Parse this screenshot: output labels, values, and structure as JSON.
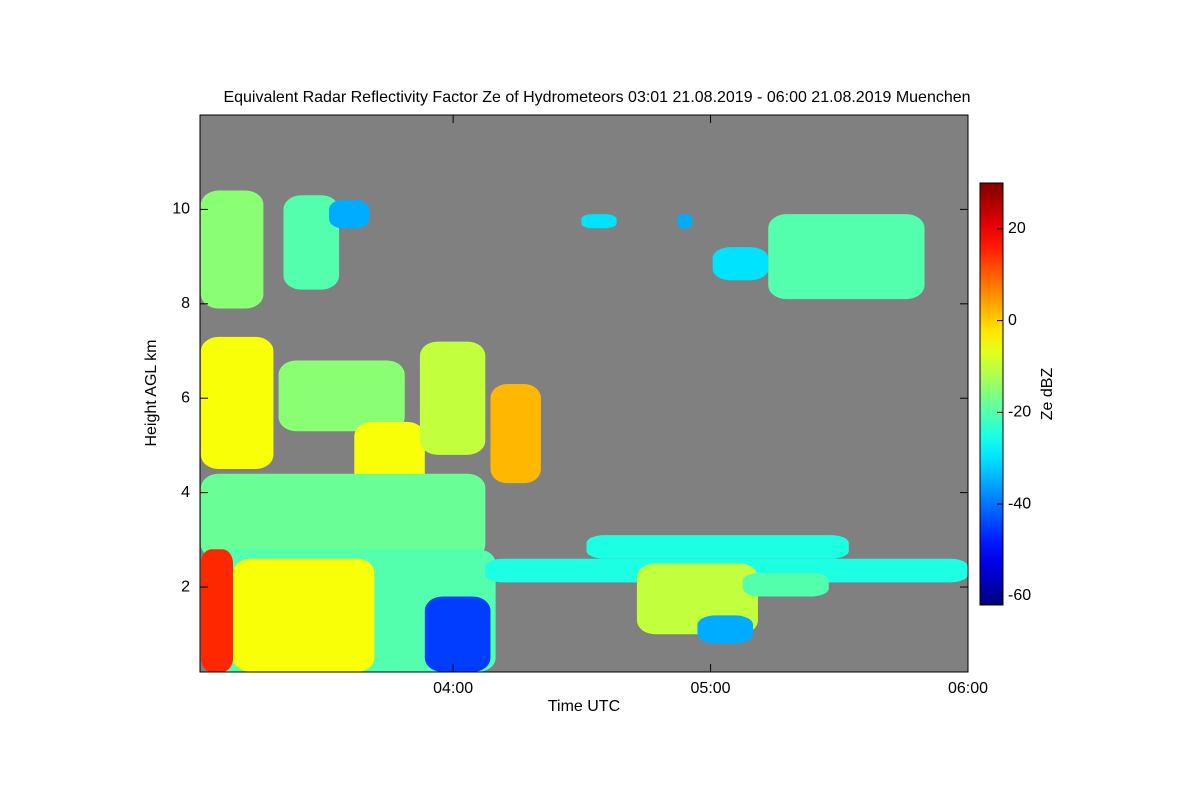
{
  "chart_data": {
    "type": "time-height",
    "title": "Equivalent Radar Reflectivity Factor Ze of Hydrometeors   03:01 21.08.2019 - 06:00 21.08.2019 Muenchen",
    "xlabel": "Time UTC",
    "ylabel": "Height AGL km",
    "colorbar_label": "Ze dBZ",
    "colormap": "jet",
    "background": "#808080",
    "xlim": [
      3.0167,
      6
    ],
    "xticks": [
      {
        "value": 4,
        "label": "04:00"
      },
      {
        "value": 5,
        "label": "05:00"
      },
      {
        "value": 6,
        "label": "06:00"
      }
    ],
    "ylim": [
      0.2,
      12
    ],
    "yticks": [
      2,
      4,
      6,
      8,
      10
    ],
    "clim": [
      -62,
      30
    ],
    "cticks": [
      20,
      0,
      -20,
      -40,
      -60
    ],
    "regions": [
      {
        "x0": 3.02,
        "x1": 3.263,
        "y0": 7.9,
        "y1": 10.4,
        "value": -15
      },
      {
        "x0": 3.341,
        "x1": 3.557,
        "y0": 8.3,
        "y1": 10.3,
        "value": -20
      },
      {
        "x0": 3.518,
        "x1": 3.675,
        "y0": 9.6,
        "y1": 10.2,
        "value": -35
      },
      {
        "x0": 3.02,
        "x1": 3.302,
        "y0": 4.5,
        "y1": 7.3,
        "value": -5
      },
      {
        "x0": 3.322,
        "x1": 3.812,
        "y0": 5.3,
        "y1": 6.8,
        "value": -15
      },
      {
        "x0": 3.616,
        "x1": 3.89,
        "y0": 4.0,
        "y1": 5.5,
        "value": -5
      },
      {
        "x0": 3.871,
        "x1": 4.125,
        "y0": 4.8,
        "y1": 7.2,
        "value": -10
      },
      {
        "x0": 4.145,
        "x1": 4.341,
        "y0": 4.2,
        "y1": 6.3,
        "value": 2
      },
      {
        "x0": 3.02,
        "x1": 4.125,
        "y0": 2.6,
        "y1": 4.4,
        "value": -18
      },
      {
        "x0": 3.02,
        "x1": 4.165,
        "y0": 0.2,
        "y1": 2.8,
        "value": -20
      },
      {
        "x0": 3.145,
        "x1": 3.694,
        "y0": 0.2,
        "y1": 2.6,
        "value": -5
      },
      {
        "x0": 3.02,
        "x1": 3.145,
        "y0": 0.2,
        "y1": 2.8,
        "value": 15
      },
      {
        "x0": 3.89,
        "x1": 4.145,
        "y0": 0.2,
        "y1": 1.8,
        "value": -45
      },
      {
        "x0": 4.125,
        "x1": 6.0,
        "y0": 2.1,
        "y1": 2.6,
        "value": -25
      },
      {
        "x0": 4.518,
        "x1": 5.537,
        "y0": 2.6,
        "y1": 3.1,
        "value": -25
      },
      {
        "x0": 4.714,
        "x1": 5.184,
        "y0": 1.0,
        "y1": 2.5,
        "value": -10
      },
      {
        "x0": 4.949,
        "x1": 5.165,
        "y0": 0.8,
        "y1": 1.4,
        "value": -35
      },
      {
        "x0": 5.125,
        "x1": 5.459,
        "y0": 1.8,
        "y1": 2.3,
        "value": -20
      },
      {
        "x0": 5.224,
        "x1": 5.831,
        "y0": 8.1,
        "y1": 9.9,
        "value": -20
      },
      {
        "x0": 5.008,
        "x1": 5.224,
        "y0": 8.5,
        "y1": 9.2,
        "value": -30
      },
      {
        "x0": 4.498,
        "x1": 4.635,
        "y0": 9.6,
        "y1": 9.9,
        "value": -30
      },
      {
        "x0": 4.871,
        "x1": 4.929,
        "y0": 9.6,
        "y1": 9.9,
        "value": -35
      }
    ]
  }
}
